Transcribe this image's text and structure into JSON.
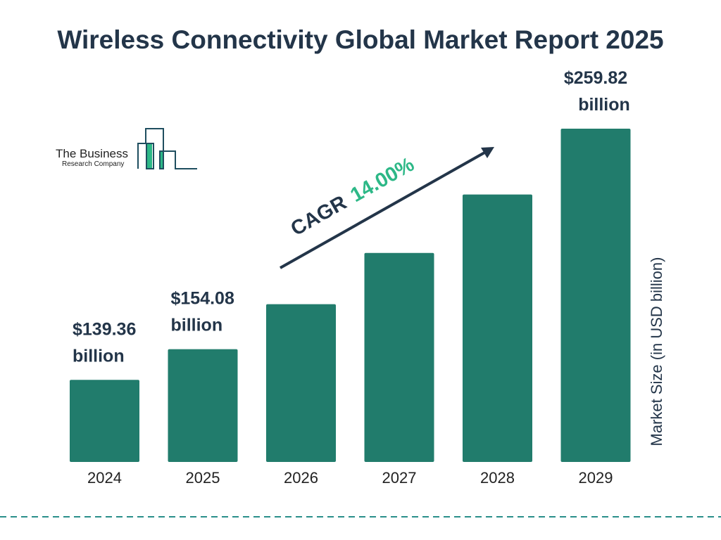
{
  "title": "Wireless Connectivity Global Market Report 2025",
  "logo": {
    "line1": "The Business",
    "line2": "Research Company"
  },
  "colors": {
    "bar": "#217C6C",
    "text": "#233549",
    "accent": "#2DB887",
    "dashed_line": "#2A8F8A"
  },
  "chart_data": {
    "type": "bar",
    "title": "Wireless Connectivity Global Market Report 2025",
    "categories": [
      "2024",
      "2025",
      "2026",
      "2027",
      "2028",
      "2029"
    ],
    "values": [
      139.36,
      154.08,
      175.65,
      200.24,
      228.27,
      259.82
    ],
    "data_labels": [
      {
        "index": 0,
        "line1": "$139.36",
        "line2": "billion"
      },
      {
        "index": 1,
        "line1": "$154.08",
        "line2": "billion"
      },
      {
        "index": 5,
        "line1": "$259.82",
        "line2": "billion"
      }
    ],
    "ylabel": "Market Size (in USD billion)",
    "xlabel": "",
    "ylim": [
      100,
      260
    ],
    "grid": false,
    "annotation": {
      "prefix": "CAGR",
      "value": "14.00%"
    }
  }
}
